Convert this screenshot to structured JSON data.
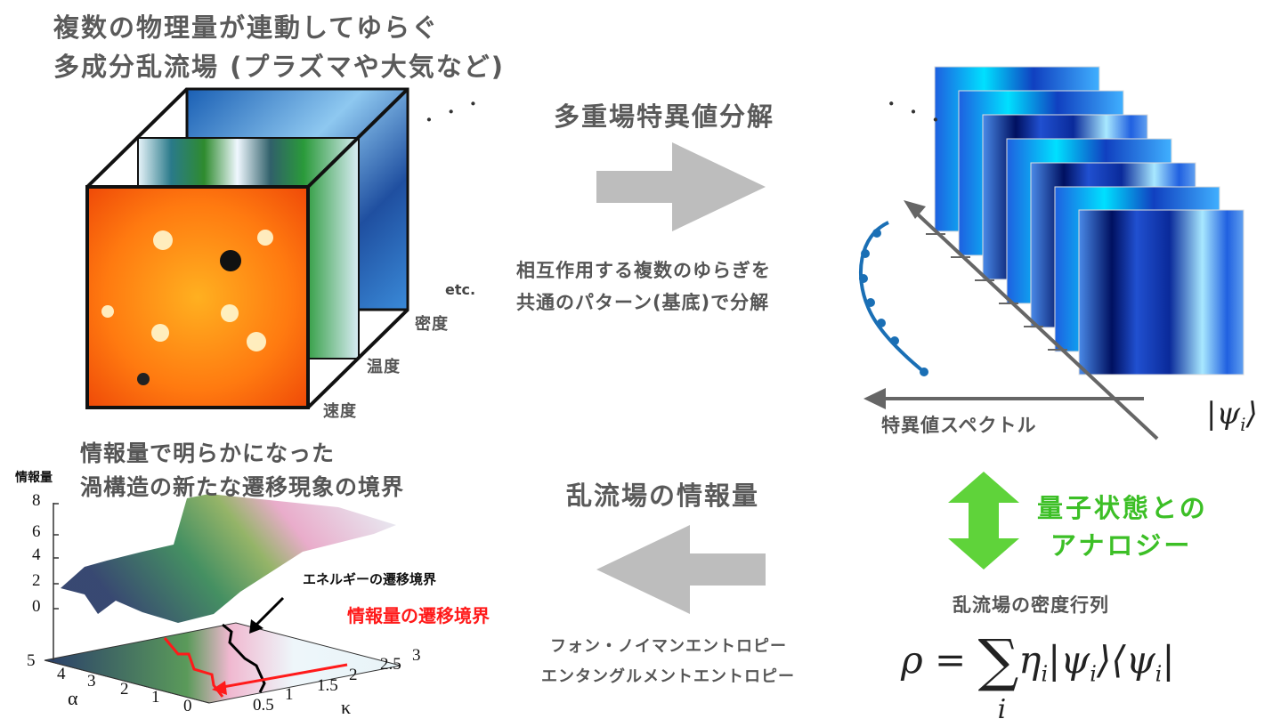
{
  "top_left": {
    "title_line1": "複数の物理量が連動してゆらぐ",
    "title_line2": "多成分乱流場 (プラズマや大気など)",
    "labels": [
      "速度",
      "温度",
      "密度",
      "etc."
    ],
    "ellipsis": "・ ・ ・"
  },
  "middle_top": {
    "title": "多重場特異値分解",
    "desc_line1": "相互作用する複数のゆらぎを",
    "desc_line2": "共通のパターン(基底)で分解"
  },
  "top_right": {
    "spectrum_label": "特異値スペクトル",
    "basis_label": "|ψ",
    "basis_sub": "i",
    "basis_close": "⟩",
    "ellipsis": "・ ・ ・"
  },
  "analogy": {
    "line1": "量子状態との",
    "line2": "アナロジー",
    "color": "#3cbf26"
  },
  "density_matrix": {
    "label": "乱流場の密度行列",
    "formula_lhs": "ρ =",
    "formula_sum": "∑",
    "formula_index": "i",
    "formula_rhs": "η",
    "formula_rhs_sub": "i",
    "formula_ket": "|ψ",
    "formula_ket_sub": "i",
    "formula_ket_close": "⟩⟨ψ",
    "formula_bra_sub": "i",
    "formula_bra_close": "|"
  },
  "middle_bottom": {
    "title": "乱流場の情報量",
    "line1": "フォン・ノイマンエントロピー",
    "line2": "エンタングルメントエントロピー"
  },
  "bottom_left": {
    "title_line1": "情報量で明らかになった",
    "title_line2": "渦構造の新たな遷移現象の境界",
    "z_label": "情報量",
    "z_ticks": [
      "8",
      "6",
      "4",
      "2",
      "0"
    ],
    "alpha_label": "α",
    "alpha_ticks": [
      "5",
      "4",
      "3",
      "2",
      "1",
      "0"
    ],
    "kappa_label": "κ",
    "kappa_ticks": [
      "0.5",
      "1",
      "1.5",
      "2",
      "2.5",
      "3"
    ],
    "energy_boundary": "エネルギーの遷移境界",
    "info_boundary": "情報量の遷移境界",
    "info_color": "#ff1a1a"
  },
  "colors": {
    "arrow_gray": "#bdbdbd",
    "axis_gray": "#666666",
    "curve_blue": "#1a6fb5"
  }
}
